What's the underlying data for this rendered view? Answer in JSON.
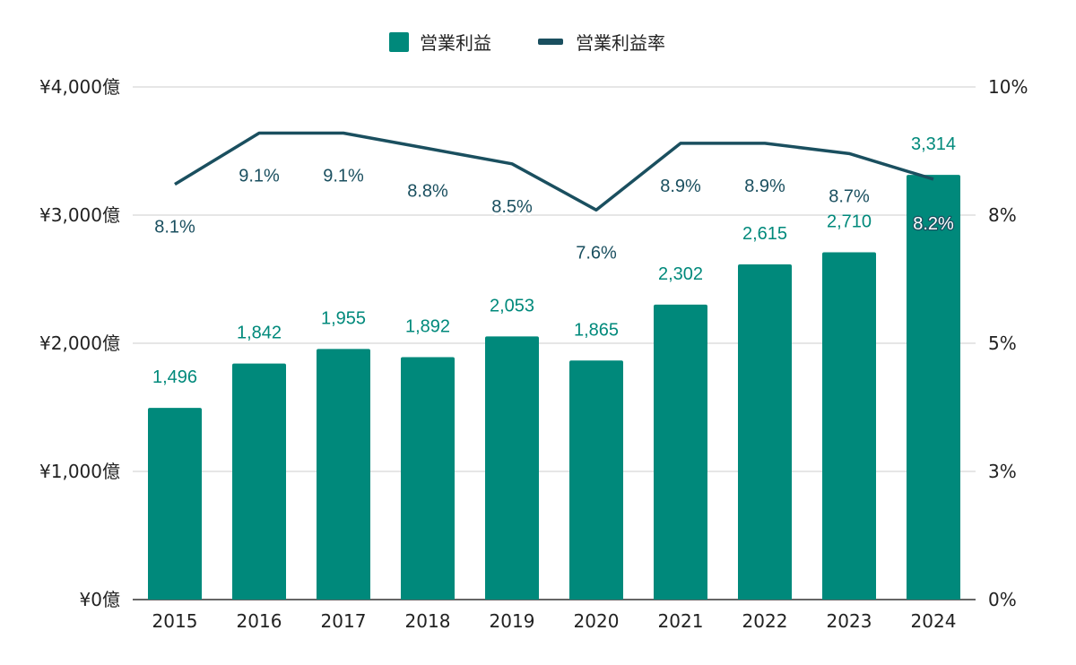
{
  "chart_data": {
    "type": "bar",
    "categories": [
      "2015",
      "2016",
      "2017",
      "2018",
      "2019",
      "2020",
      "2021",
      "2022",
      "2023",
      "2024"
    ],
    "series": [
      {
        "name": "営業利益",
        "type": "bar",
        "axis": "left",
        "color": "#00897b",
        "values": [
          1496,
          1842,
          1955,
          1892,
          2053,
          1865,
          2302,
          2615,
          2710,
          3314
        ],
        "labels": [
          "1,496",
          "1,842",
          "1,955",
          "1,892",
          "2,053",
          "1,865",
          "2,302",
          "2,615",
          "2,710",
          "3,314"
        ]
      },
      {
        "name": "営業利益率",
        "type": "line",
        "axis": "right",
        "color": "#1a4f5f",
        "values": [
          8.1,
          9.1,
          9.1,
          8.8,
          8.5,
          7.6,
          8.9,
          8.9,
          8.7,
          8.2
        ],
        "labels": [
          "8.1%",
          "9.1%",
          "9.1%",
          "8.8%",
          "8.5%",
          "7.6%",
          "8.9%",
          "8.9%",
          "8.7%",
          "8.2%"
        ]
      }
    ],
    "y_left": {
      "ylim": [
        0,
        4000
      ],
      "ticks": [
        0,
        1000,
        2000,
        3000,
        4000
      ],
      "tick_labels": [
        "¥0億",
        "¥1,000億",
        "¥2,000億",
        "¥3,000億",
        "¥4,000億"
      ]
    },
    "y_right": {
      "ylim": [
        0,
        10
      ],
      "tick_labels": [
        "0%",
        "3%",
        "5%",
        "8%",
        "10%"
      ]
    },
    "legend_position": "top-center",
    "grid": true
  }
}
